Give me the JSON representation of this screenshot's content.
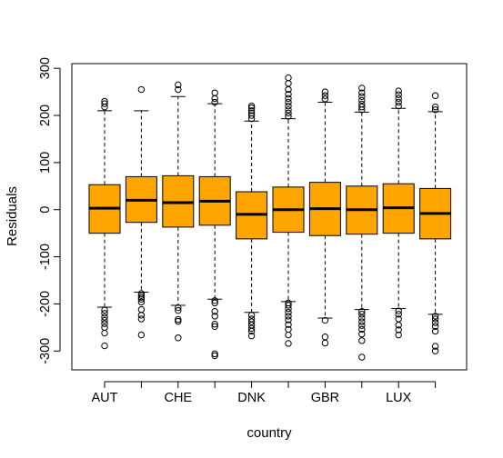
{
  "chart_data": {
    "type": "box",
    "xlabel": "country",
    "ylabel": "Residuals",
    "ylim": [
      -340,
      310
    ],
    "yticks": [
      -300,
      -200,
      -100,
      0,
      100,
      200,
      300
    ],
    "x_tick_labels_shown": [
      "AUT",
      "CHE",
      "DNK",
      "GBR",
      "LUX"
    ],
    "box_fill": "#FFA500",
    "categories": [
      "AUT",
      "",
      "CHE",
      "",
      "DNK",
      "",
      "GBR",
      "",
      "LUX",
      ""
    ],
    "boxes": [
      {
        "min": -207,
        "q1": -50,
        "median": 3,
        "q3": 53,
        "max": 210,
        "outliers": [
          218,
          225,
          230,
          -213,
          -220,
          -228,
          -235,
          -242,
          -250,
          -262,
          -289
        ]
      },
      {
        "min": -175,
        "q1": -27,
        "median": 20,
        "q3": 70,
        "max": 210,
        "outliers": [
          255,
          -178,
          -182,
          -186,
          -190,
          -196,
          -212,
          -224,
          -232,
          -266
        ]
      },
      {
        "min": -203,
        "q1": -37,
        "median": 15,
        "q3": 72,
        "max": 240,
        "outliers": [
          255,
          265,
          -208,
          -214,
          -233,
          -237,
          -272
        ]
      },
      {
        "min": -190,
        "q1": -33,
        "median": 18,
        "q3": 70,
        "max": 225,
        "outliers": [
          228,
          236,
          248,
          -193,
          -198,
          -216,
          -226,
          -243,
          -248,
          -306,
          -310
        ]
      },
      {
        "min": -218,
        "q1": -62,
        "median": -10,
        "q3": 38,
        "max": 188,
        "outliers": [
          193,
          200,
          205,
          210,
          216,
          220,
          -224,
          -232,
          -238,
          -245,
          -252,
          -258,
          -268
        ]
      },
      {
        "min": -195,
        "q1": -48,
        "median": 0,
        "q3": 48,
        "max": 193,
        "outliers": [
          198,
          205,
          212,
          220,
          228,
          236,
          245,
          255,
          268,
          280,
          -198,
          -203,
          -210,
          -218,
          -226,
          -234,
          -244,
          -254,
          -266,
          -284
        ]
      },
      {
        "min": -230,
        "q1": -55,
        "median": 2,
        "q3": 58,
        "max": 228,
        "outliers": [
          235,
          242,
          250,
          -235,
          -270,
          -283
        ]
      },
      {
        "min": -212,
        "q1": -52,
        "median": 0,
        "q3": 50,
        "max": 207,
        "outliers": [
          212,
          218,
          224,
          232,
          240,
          248,
          258,
          -216,
          -222,
          -230,
          -238,
          -246,
          -254,
          -264,
          -278,
          -313
        ]
      },
      {
        "min": -210,
        "q1": -50,
        "median": 4,
        "q3": 55,
        "max": 215,
        "outliers": [
          220,
          228,
          236,
          244,
          252,
          -215,
          -222,
          -232,
          -245,
          -255,
          -266
        ]
      },
      {
        "min": -222,
        "q1": -62,
        "median": -8,
        "q3": 45,
        "max": 208,
        "outliers": [
          212,
          218,
          242,
          -226,
          -232,
          -240,
          -248,
          -258,
          -290,
          -300
        ]
      }
    ]
  }
}
